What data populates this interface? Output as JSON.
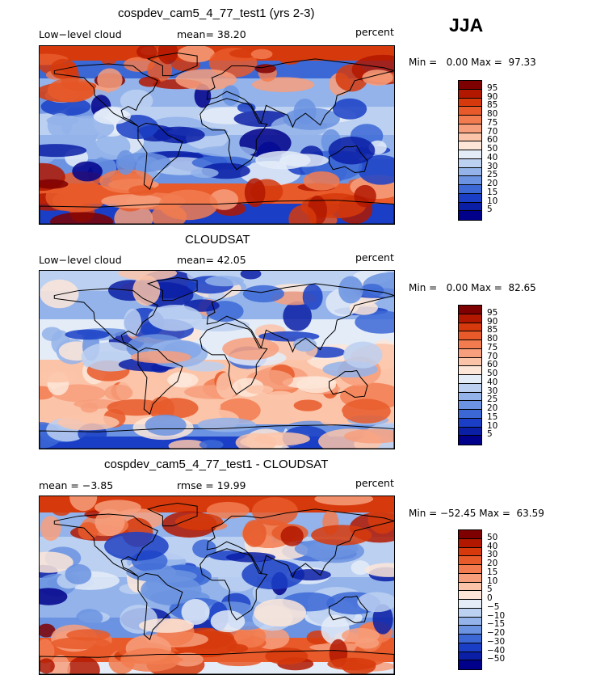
{
  "season": "JJA",
  "panels": [
    {
      "title": "cospdev_cam5_4_77_test1 (yrs 2-3)",
      "left_label": "Low−level cloud",
      "mid_label": "mean=  38.20",
      "right_label": "percent",
      "minmax": "Min =   0.00 Max =  97.33",
      "colorbar_labels": [
        "95",
        "90",
        "85",
        "80",
        "75",
        "70",
        "60",
        "50",
        "40",
        "30",
        "25",
        "20",
        "15",
        "10",
        "5"
      ],
      "field": "model"
    },
    {
      "title": "CLOUDSAT",
      "left_label": "Low−level cloud",
      "mid_label": "mean=  42.05",
      "right_label": "percent",
      "minmax": "Min =   0.00 Max =  82.65",
      "colorbar_labels": [
        "95",
        "90",
        "85",
        "80",
        "75",
        "70",
        "60",
        "50",
        "40",
        "30",
        "25",
        "20",
        "15",
        "10",
        "5"
      ],
      "field": "obs"
    },
    {
      "title": "cospdev_cam5_4_77_test1 - CLOUDSAT",
      "left_label": "mean =  −3.85",
      "mid_label": "rmse =  19.99",
      "right_label": "percent",
      "minmax": "Min = −52.45 Max =  63.59",
      "colorbar_labels": [
        "50",
        "40",
        "30",
        "20",
        "15",
        "10",
        "5",
        "0",
        "−5",
        "−10",
        "−15",
        "−20",
        "−30",
        "−40",
        "−50"
      ],
      "field": "diff"
    }
  ],
  "colors": {
    "scale": [
      "#7f0000",
      "#b21800",
      "#d63a0c",
      "#e85a2a",
      "#f27c50",
      "#f79f7c",
      "#fbc4a9",
      "#fde6d8",
      "#e4ecf8",
      "#bcd0f1",
      "#93b3ea",
      "#6b93e1",
      "#3c68d6",
      "#1a3fc6",
      "#0a1fa6",
      "#00008a"
    ]
  }
}
